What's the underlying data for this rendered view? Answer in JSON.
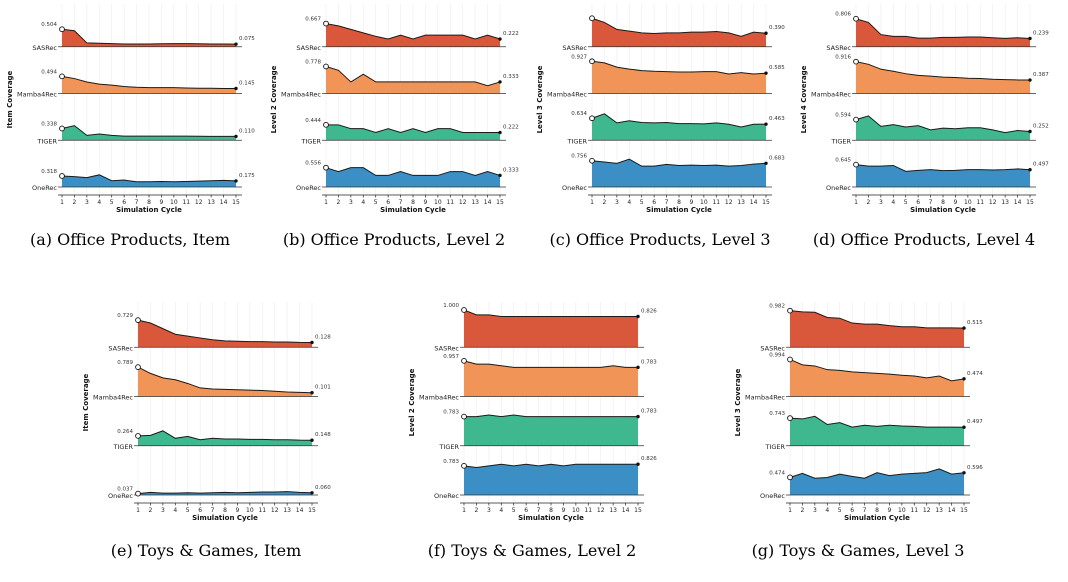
{
  "chart_data": [
    {
      "type": "area",
      "caption": "(a) Office Products, Item",
      "ylabel": "Item Coverage",
      "xlabel": "Simulation Cycle",
      "x": [
        1,
        2,
        3,
        4,
        5,
        6,
        7,
        8,
        9,
        10,
        11,
        12,
        13,
        14,
        15
      ],
      "series": [
        {
          "name": "SASRec",
          "color": "#d9573b",
          "start_label": "0.504",
          "end_label": "0.075",
          "values": [
            0.504,
            0.46,
            0.11,
            0.1,
            0.09,
            0.08,
            0.08,
            0.08,
            0.085,
            0.09,
            0.09,
            0.085,
            0.08,
            0.08,
            0.075
          ]
        },
        {
          "name": "Mamba4Rec",
          "color": "#f09557",
          "start_label": "0.494",
          "end_label": "0.145",
          "values": [
            0.494,
            0.43,
            0.33,
            0.27,
            0.24,
            0.2,
            0.18,
            0.17,
            0.17,
            0.17,
            0.16,
            0.15,
            0.15,
            0.145,
            0.145
          ]
        },
        {
          "name": "TIGER",
          "color": "#3fb88f",
          "start_label": "0.338",
          "end_label": "0.110",
          "values": [
            0.338,
            0.42,
            0.14,
            0.18,
            0.14,
            0.12,
            0.12,
            0.12,
            0.12,
            0.12,
            0.12,
            0.115,
            0.11,
            0.11,
            0.11
          ]
        },
        {
          "name": "OneRec",
          "color": "#3b8fc4",
          "start_label": "0.318",
          "end_label": "0.175",
          "values": [
            0.318,
            0.3,
            0.27,
            0.35,
            0.18,
            0.2,
            0.15,
            0.15,
            0.16,
            0.15,
            0.16,
            0.17,
            0.18,
            0.19,
            0.175
          ]
        }
      ]
    },
    {
      "type": "area",
      "caption": "(b) Office Products, Level 2",
      "ylabel": "Level 2 Coverage",
      "xlabel": "Simulation Cycle",
      "x": [
        1,
        2,
        3,
        4,
        5,
        6,
        7,
        8,
        9,
        10,
        11,
        12,
        13,
        14,
        15
      ],
      "series": [
        {
          "name": "SASRec",
          "color": "#d9573b",
          "start_label": "0.667",
          "end_label": "0.222",
          "values": [
            0.667,
            0.6,
            0.5,
            0.4,
            0.3,
            0.222,
            0.333,
            0.222,
            0.333,
            0.333,
            0.333,
            0.333,
            0.222,
            0.333,
            0.222
          ]
        },
        {
          "name": "Mamba4Rec",
          "color": "#f09557",
          "start_label": "0.778",
          "end_label": "0.333",
          "values": [
            0.778,
            0.667,
            0.333,
            0.556,
            0.333,
            0.333,
            0.333,
            0.333,
            0.333,
            0.333,
            0.333,
            0.333,
            0.333,
            0.222,
            0.333
          ]
        },
        {
          "name": "TIGER",
          "color": "#3fb88f",
          "start_label": "0.444",
          "end_label": "0.222",
          "values": [
            0.444,
            0.444,
            0.333,
            0.333,
            0.222,
            0.333,
            0.222,
            0.333,
            0.222,
            0.333,
            0.333,
            0.222,
            0.222,
            0.222,
            0.222
          ]
        },
        {
          "name": "OneRec",
          "color": "#3b8fc4",
          "start_label": "0.556",
          "end_label": "0.333",
          "values": [
            0.556,
            0.444,
            0.556,
            0.556,
            0.333,
            0.333,
            0.444,
            0.333,
            0.333,
            0.333,
            0.444,
            0.444,
            0.333,
            0.444,
            0.333
          ]
        }
      ]
    },
    {
      "type": "area",
      "caption": "(c) Office Products, Level 3",
      "ylabel": "Level 3 Coverage",
      "xlabel": "Simulation Cycle",
      "x": [
        1,
        2,
        3,
        4,
        5,
        6,
        7,
        8,
        9,
        10,
        11,
        12,
        13,
        14,
        15
      ],
      "series": [
        {
          "name": "SASRec",
          "color": "#d9573b",
          "start_label": "",
          "end_label": "0.390",
          "values": [
            0.82,
            0.7,
            0.5,
            0.45,
            0.4,
            0.38,
            0.4,
            0.4,
            0.42,
            0.42,
            0.44,
            0.4,
            0.3,
            0.42,
            0.39
          ]
        },
        {
          "name": "Mamba4Rec",
          "color": "#f09557",
          "start_label": "0.927",
          "end_label": "0.585",
          "values": [
            0.927,
            0.88,
            0.76,
            0.7,
            0.66,
            0.64,
            0.63,
            0.62,
            0.62,
            0.63,
            0.63,
            0.56,
            0.6,
            0.56,
            0.585
          ]
        },
        {
          "name": "TIGER",
          "color": "#3fb88f",
          "start_label": "0.634",
          "end_label": "0.463",
          "values": [
            0.634,
            0.76,
            0.5,
            0.56,
            0.51,
            0.5,
            0.51,
            0.48,
            0.48,
            0.47,
            0.5,
            0.46,
            0.38,
            0.46,
            0.463
          ]
        },
        {
          "name": "OneRec",
          "color": "#3b8fc4",
          "start_label": "0.756",
          "end_label": "0.683",
          "values": [
            0.756,
            0.72,
            0.68,
            0.8,
            0.6,
            0.6,
            0.65,
            0.62,
            0.63,
            0.62,
            0.63,
            0.6,
            0.62,
            0.66,
            0.683
          ]
        }
      ]
    },
    {
      "type": "area",
      "caption": "(d) Office Products, Level 4",
      "ylabel": "Level 4 Coverage",
      "xlabel": "Simulation Cycle",
      "x": [
        1,
        2,
        3,
        4,
        5,
        6,
        7,
        8,
        9,
        10,
        11,
        12,
        13,
        14,
        15
      ],
      "series": [
        {
          "name": "SASRec",
          "color": "#d9573b",
          "start_label": "0.806",
          "end_label": "0.239",
          "values": [
            0.806,
            0.7,
            0.35,
            0.3,
            0.3,
            0.25,
            0.25,
            0.27,
            0.27,
            0.28,
            0.28,
            0.26,
            0.24,
            0.26,
            0.239
          ]
        },
        {
          "name": "Mamba4Rec",
          "color": "#f09557",
          "start_label": "0.916",
          "end_label": "0.387",
          "values": [
            0.916,
            0.84,
            0.7,
            0.64,
            0.57,
            0.52,
            0.5,
            0.47,
            0.46,
            0.44,
            0.43,
            0.41,
            0.4,
            0.39,
            0.387
          ]
        },
        {
          "name": "TIGER",
          "color": "#3fb88f",
          "start_label": "0.594",
          "end_label": "0.252",
          "values": [
            0.594,
            0.7,
            0.4,
            0.45,
            0.38,
            0.42,
            0.3,
            0.35,
            0.33,
            0.36,
            0.36,
            0.3,
            0.22,
            0.28,
            0.252
          ]
        },
        {
          "name": "OneRec",
          "color": "#3b8fc4",
          "start_label": "0.645",
          "end_label": "0.497",
          "values": [
            0.645,
            0.6,
            0.6,
            0.62,
            0.45,
            0.48,
            0.5,
            0.47,
            0.48,
            0.5,
            0.5,
            0.49,
            0.5,
            0.52,
            0.497
          ]
        }
      ]
    },
    {
      "type": "area",
      "caption": "(e) Toys & Games, Item",
      "ylabel": "Item Coverage",
      "xlabel": "Simulation Cycle",
      "x": [
        1,
        2,
        3,
        4,
        5,
        6,
        7,
        8,
        9,
        10,
        11,
        12,
        13,
        14,
        15
      ],
      "series": [
        {
          "name": "SASRec",
          "color": "#d9573b",
          "start_label": "0.729",
          "end_label": "0.128",
          "values": [
            0.729,
            0.65,
            0.5,
            0.35,
            0.3,
            0.25,
            0.2,
            0.17,
            0.16,
            0.15,
            0.15,
            0.14,
            0.14,
            0.13,
            0.128
          ]
        },
        {
          "name": "Mamba4Rec",
          "color": "#f09557",
          "start_label": "0.789",
          "end_label": "0.101",
          "values": [
            0.789,
            0.62,
            0.5,
            0.45,
            0.35,
            0.23,
            0.2,
            0.19,
            0.18,
            0.17,
            0.16,
            0.14,
            0.12,
            0.11,
            0.101
          ]
        },
        {
          "name": "TIGER",
          "color": "#3fb88f",
          "start_label": "0.264",
          "end_label": "0.148",
          "values": [
            0.264,
            0.28,
            0.4,
            0.2,
            0.25,
            0.16,
            0.2,
            0.18,
            0.18,
            0.17,
            0.17,
            0.16,
            0.16,
            0.15,
            0.148
          ]
        },
        {
          "name": "OneRec",
          "color": "#3b8fc4",
          "start_label": "0.037",
          "end_label": "0.060",
          "values": [
            0.037,
            0.07,
            0.05,
            0.05,
            0.06,
            0.05,
            0.06,
            0.07,
            0.06,
            0.07,
            0.08,
            0.08,
            0.09,
            0.07,
            0.06
          ]
        }
      ]
    },
    {
      "type": "area",
      "caption": "(f) Toys & Games, Level 2",
      "ylabel": "Level 2 Coverage",
      "xlabel": "Simulation Cycle",
      "x": [
        1,
        2,
        3,
        4,
        5,
        6,
        7,
        8,
        9,
        10,
        11,
        12,
        13,
        14,
        15
      ],
      "series": [
        {
          "name": "SASRec",
          "color": "#d9573b",
          "start_label": "1.000",
          "end_label": "0.826",
          "values": [
            1.0,
            0.87,
            0.87,
            0.826,
            0.826,
            0.826,
            0.826,
            0.826,
            0.826,
            0.826,
            0.826,
            0.826,
            0.826,
            0.826,
            0.826
          ]
        },
        {
          "name": "Mamba4Rec",
          "color": "#f09557",
          "start_label": "0.957",
          "end_label": "0.783",
          "values": [
            0.957,
            0.87,
            0.87,
            0.826,
            0.783,
            0.783,
            0.783,
            0.783,
            0.783,
            0.783,
            0.783,
            0.783,
            0.826,
            0.783,
            0.783
          ]
        },
        {
          "name": "TIGER",
          "color": "#3fb88f",
          "start_label": "0.783",
          "end_label": "0.783",
          "values": [
            0.783,
            0.783,
            0.826,
            0.783,
            0.826,
            0.783,
            0.783,
            0.783,
            0.783,
            0.783,
            0.783,
            0.783,
            0.783,
            0.783,
            0.783
          ]
        },
        {
          "name": "OneRec",
          "color": "#3b8fc4",
          "start_label": "0.783",
          "end_label": "0.826",
          "values": [
            0.783,
            0.74,
            0.783,
            0.826,
            0.783,
            0.826,
            0.783,
            0.826,
            0.783,
            0.826,
            0.826,
            0.826,
            0.826,
            0.826,
            0.826
          ]
        }
      ]
    },
    {
      "type": "area",
      "caption": "(g) Toys & Games, Level 3",
      "ylabel": "Level 3 Coverage",
      "xlabel": "Simulation Cycle",
      "x": [
        1,
        2,
        3,
        4,
        5,
        6,
        7,
        8,
        9,
        10,
        11,
        12,
        13,
        14,
        15
      ],
      "series": [
        {
          "name": "SASRec",
          "color": "#d9573b",
          "start_label": "0.982",
          "end_label": "0.515",
          "values": [
            0.982,
            0.95,
            0.94,
            0.8,
            0.78,
            0.65,
            0.62,
            0.62,
            0.58,
            0.55,
            0.55,
            0.52,
            0.52,
            0.52,
            0.515
          ]
        },
        {
          "name": "Mamba4Rec",
          "color": "#f09557",
          "start_label": "0.994",
          "end_label": "0.474",
          "values": [
            0.994,
            0.85,
            0.82,
            0.72,
            0.7,
            0.66,
            0.64,
            0.62,
            0.6,
            0.57,
            0.55,
            0.5,
            0.55,
            0.42,
            0.474
          ]
        },
        {
          "name": "TIGER",
          "color": "#3fb88f",
          "start_label": "0.743",
          "end_label": "0.497",
          "values": [
            0.743,
            0.72,
            0.79,
            0.57,
            0.62,
            0.5,
            0.55,
            0.52,
            0.55,
            0.53,
            0.52,
            0.5,
            0.5,
            0.5,
            0.497
          ]
        },
        {
          "name": "OneRec",
          "color": "#3b8fc4",
          "start_label": "0.474",
          "end_label": "0.596",
          "values": [
            0.474,
            0.58,
            0.45,
            0.47,
            0.56,
            0.5,
            0.45,
            0.6,
            0.52,
            0.56,
            0.58,
            0.6,
            0.7,
            0.56,
            0.596
          ]
        }
      ]
    }
  ]
}
